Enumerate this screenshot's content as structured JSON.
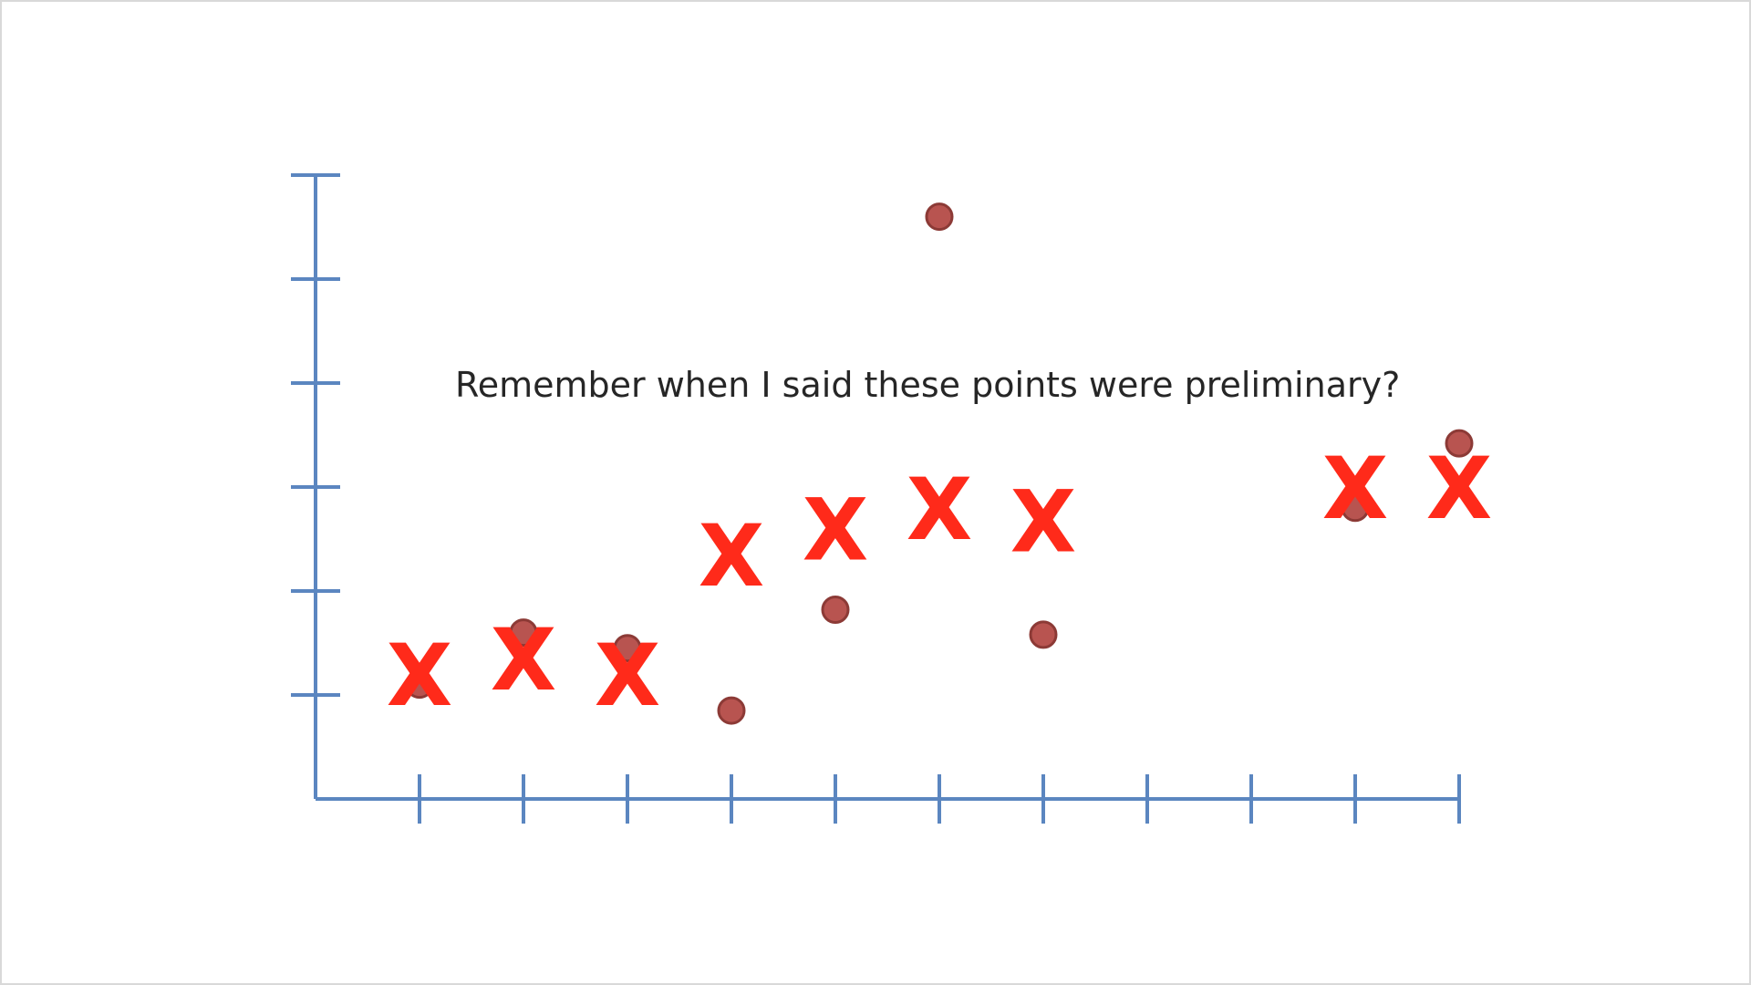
{
  "chart_data": {
    "type": "scatter",
    "title": "",
    "xlabel": "",
    "ylabel": "",
    "x_ticks": [
      1,
      2,
      3,
      4,
      5,
      6,
      7,
      8,
      9,
      10,
      11
    ],
    "y_ticks": [
      1,
      2,
      3,
      4,
      5,
      6
    ],
    "xlim": [
      0,
      11
    ],
    "ylim": [
      0,
      6
    ],
    "tick_labels_shown": false,
    "grid": false,
    "annotation": "Remember when I said these points were preliminary?",
    "series": [
      {
        "marker": "circle",
        "points": [
          {
            "x": 1,
            "y": 1.1
          },
          {
            "x": 2,
            "y": 1.6
          },
          {
            "x": 3,
            "y": 1.45
          },
          {
            "x": 4,
            "y": 0.85
          },
          {
            "x": 5,
            "y": 1.82
          },
          {
            "x": 6,
            "y": 5.6
          },
          {
            "x": 7,
            "y": 1.58
          },
          {
            "x": 10,
            "y": 2.8
          },
          {
            "x": 11,
            "y": 3.42
          }
        ]
      },
      {
        "marker": "x",
        "points": [
          {
            "x": 1,
            "y": 1.2
          },
          {
            "x": 2,
            "y": 1.35
          },
          {
            "x": 3,
            "y": 1.2
          },
          {
            "x": 4,
            "y": 2.35
          },
          {
            "x": 5,
            "y": 2.6
          },
          {
            "x": 6,
            "y": 2.8
          },
          {
            "x": 7,
            "y": 2.68
          },
          {
            "x": 10,
            "y": 3.0
          },
          {
            "x": 11,
            "y": 3.0
          }
        ]
      }
    ],
    "colors": {
      "axis": "#5b86c0",
      "circle_fill": "#b85450",
      "circle_stroke": "#8c3a36",
      "x_mark": "#ff2a1a"
    }
  }
}
